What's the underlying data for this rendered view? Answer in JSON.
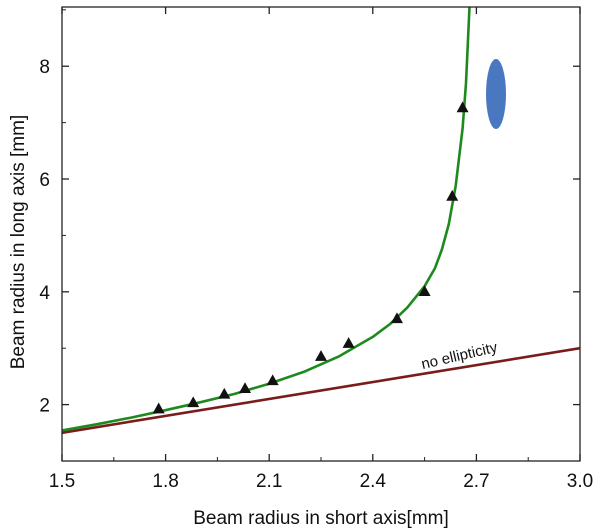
{
  "chart_data": {
    "type": "scatter",
    "title": "",
    "xlabel": "Beam radius in short axis[mm]",
    "ylabel": "Beam radius in long axis [mm]",
    "xlim": [
      1.5,
      3.0
    ],
    "ylim": [
      1.0,
      9.05
    ],
    "xticks": [
      "1.5",
      "1.8",
      "2.1",
      "2.4",
      "2.7",
      "3.0"
    ],
    "yticks": [
      "2",
      "4",
      "6",
      "8"
    ],
    "grid": false,
    "series": [
      {
        "marker": "triangle",
        "color": "#111111",
        "points": [
          [
            1.78,
            1.93
          ],
          [
            1.88,
            2.04
          ],
          [
            1.97,
            2.19
          ],
          [
            2.03,
            2.29
          ],
          [
            2.11,
            2.43
          ],
          [
            2.25,
            2.86
          ],
          [
            2.33,
            3.09
          ],
          [
            2.47,
            3.53
          ],
          [
            2.55,
            4.01
          ],
          [
            2.63,
            5.7
          ],
          [
            2.66,
            7.27
          ]
        ]
      },
      {
        "style": "line",
        "color": "#1e8a1e",
        "points": [
          [
            1.5,
            1.54
          ],
          [
            1.6,
            1.65
          ],
          [
            1.7,
            1.77
          ],
          [
            1.8,
            1.9
          ],
          [
            1.9,
            2.04
          ],
          [
            2.0,
            2.19
          ],
          [
            2.1,
            2.37
          ],
          [
            2.2,
            2.58
          ],
          [
            2.3,
            2.85
          ],
          [
            2.4,
            3.2
          ],
          [
            2.45,
            3.43
          ],
          [
            2.5,
            3.72
          ],
          [
            2.55,
            4.1
          ],
          [
            2.58,
            4.42
          ],
          [
            2.6,
            4.75
          ],
          [
            2.62,
            5.2
          ],
          [
            2.64,
            5.88
          ],
          [
            2.66,
            6.9
          ],
          [
            2.67,
            7.7
          ],
          [
            2.68,
            9.05
          ]
        ]
      },
      {
        "name": "no ellipticity",
        "style": "line",
        "color": "#7a1c1c",
        "points": [
          [
            1.5,
            1.5
          ],
          [
            3.0,
            3.0
          ]
        ]
      }
    ],
    "annotations": [
      {
        "text": "no ellipticity",
        "x": 2.55,
        "y": 2.63
      }
    ]
  },
  "inset_shape": {
    "shape": "ellipse",
    "color": "#4a78c0"
  }
}
